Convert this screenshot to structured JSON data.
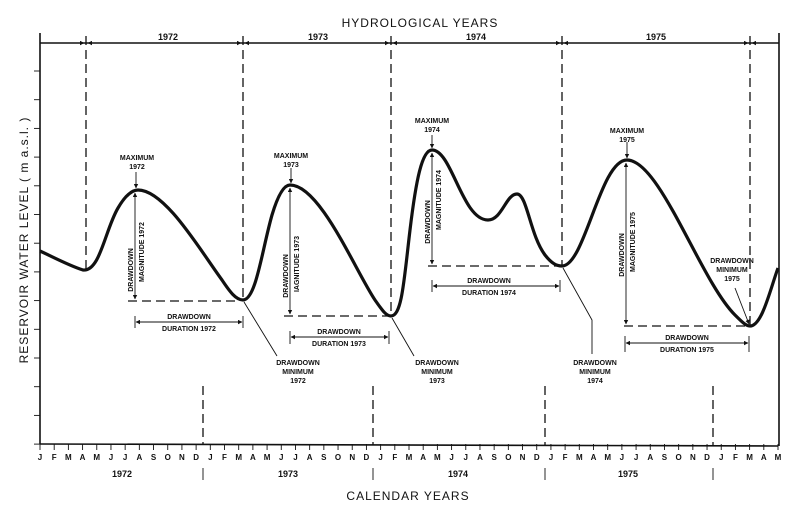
{
  "top_title": "HYDROLOGICAL YEARS",
  "bottom_title": "CALENDAR YEARS",
  "y_axis_label": "RESERVOIR WATER LEVEL ( m a.s.l. )",
  "hydrological_years": [
    "1972",
    "1973",
    "1974",
    "1975"
  ],
  "calendar_years": [
    "1972",
    "1973",
    "1974",
    "1975"
  ],
  "months": [
    "J",
    "F",
    "M",
    "A",
    "M",
    "J",
    "J",
    "A",
    "S",
    "O",
    "N",
    "D",
    "J",
    "F",
    "M",
    "A",
    "M",
    "J",
    "J",
    "A",
    "S",
    "O",
    "N",
    "D",
    "J",
    "F",
    "M",
    "A",
    "M",
    "J",
    "J",
    "A",
    "S",
    "O",
    "N",
    "D",
    "J",
    "F",
    "M",
    "A",
    "M",
    "J",
    "J",
    "A",
    "S",
    "O",
    "N",
    "D",
    "J",
    "F",
    "M",
    "A",
    "M"
  ],
  "annotations": {
    "max_1972": [
      "MAXIMUM",
      "1972"
    ],
    "max_1973": [
      "MAXIMUM",
      "1973"
    ],
    "max_1974": [
      "MAXIMUM",
      "1974"
    ],
    "max_1975": [
      "MAXIMUM",
      "1975"
    ],
    "mag_1972": [
      "DRAWDOWN",
      "MAGNITUDE 1972"
    ],
    "mag_1973": [
      "DRAWDOWN",
      "IAGNITUDE 1973"
    ],
    "mag_1974": [
      "DRAWDOWN",
      "MAGNITUDE 1974"
    ],
    "mag_1975": [
      "DRAWDOWN",
      "MAGNITUDE 1975"
    ],
    "dur_1972": [
      "DRAWDOWN",
      "DURATION 1972"
    ],
    "dur_1973": [
      "DRAWDOWN",
      "DURATION 1973"
    ],
    "dur_1974": [
      "DRAWDOWN",
      "DURATION 1974"
    ],
    "dur_1975": [
      "DRAWDOWN",
      "DURATION 1975"
    ],
    "min_1972": [
      "DRAWDOWN",
      "MINIMUM",
      "1972"
    ],
    "min_1973": [
      "DRAWDOWN",
      "MINIMUM",
      "1973"
    ],
    "min_1974": [
      "DRAWDOWN",
      "MINIMUM",
      "1974"
    ],
    "min_1975": [
      "DRAWDOWN",
      "MINIMUM",
      "1975"
    ]
  }
}
